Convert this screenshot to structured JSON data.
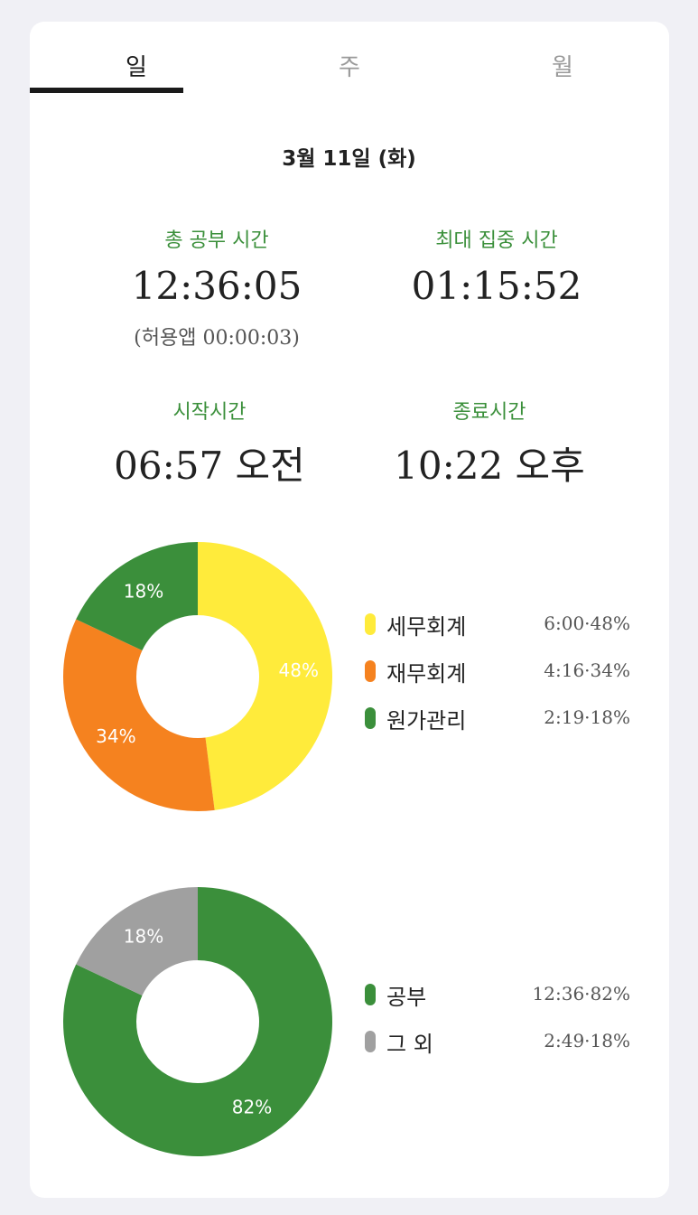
{
  "tabs": [
    {
      "label": "일",
      "active": true
    },
    {
      "label": "주",
      "active": false
    },
    {
      "label": "월",
      "active": false
    }
  ],
  "date": "3월 11일 (화)",
  "stats": {
    "total_label": "총 공부 시간",
    "total_value": "12:36:05",
    "total_sub": "(허용앱 00:00:03)",
    "max_focus_label": "최대 집중 시간",
    "max_focus_value": "01:15:52",
    "start_label": "시작시간",
    "start_value": "06:57 오전",
    "end_label": "종료시간",
    "end_value": "10:22 오후"
  },
  "chart_data": [
    {
      "type": "pie",
      "donut": true,
      "labels": [
        "세무회계",
        "재무회계",
        "원가관리"
      ],
      "values": [
        48,
        34,
        18
      ],
      "times": [
        "6:00",
        "4:16",
        "2:19"
      ],
      "colors": [
        "#ffeb3b",
        "#f5821f",
        "#3b8f3b"
      ],
      "slice_labels": [
        "48%",
        "34%",
        "18%"
      ],
      "legend_values": [
        "6:00·48%",
        "4:16·34%",
        "2:19·18%"
      ]
    },
    {
      "type": "pie",
      "donut": true,
      "labels": [
        "공부",
        "그 외"
      ],
      "values": [
        82,
        18
      ],
      "times": [
        "12:36",
        "2:49"
      ],
      "colors": [
        "#3b8f3b",
        "#a0a0a0"
      ],
      "slice_labels": [
        "82%",
        "18%"
      ],
      "legend_values": [
        "12:36·82%",
        "2:49·18%"
      ]
    }
  ]
}
